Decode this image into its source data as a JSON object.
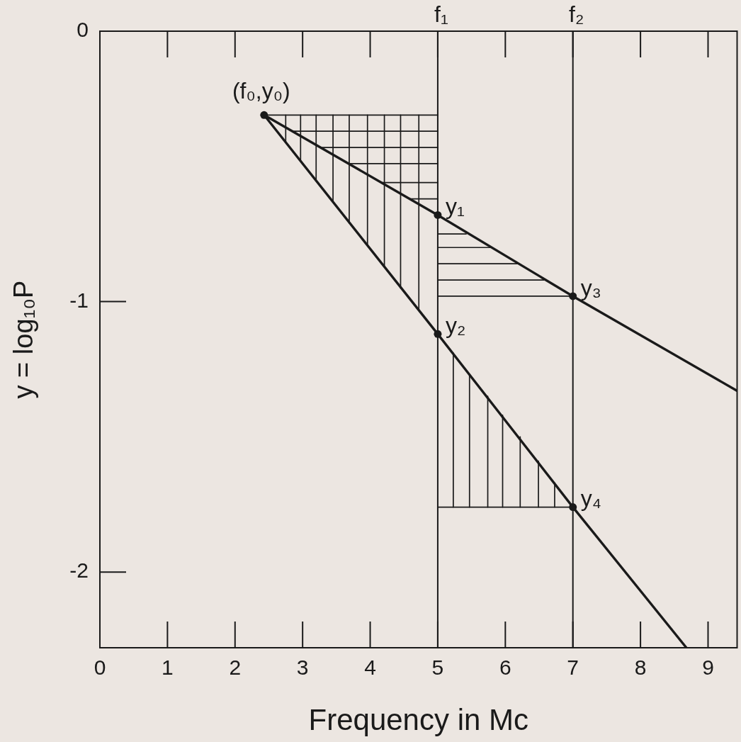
{
  "chart_data": {
    "type": "line",
    "xlabel": "Frequency in Mc",
    "ylabel": "y = log₁₀P",
    "xlim": [
      0,
      9.43
    ],
    "xticks": [
      0,
      1,
      2,
      3,
      4,
      5,
      6,
      7,
      8,
      9
    ],
    "ylim": [
      -2.28,
      0
    ],
    "yticks": [
      0,
      -1,
      -2
    ],
    "grid": false,
    "legend": false,
    "marker": "none",
    "line_style": "solid",
    "ref_lines": [
      {
        "axis": "x",
        "value": 5,
        "label": "f₁"
      },
      {
        "axis": "x",
        "value": 7,
        "label": "f₂"
      }
    ],
    "annotations": [
      {
        "text": "(f₀,y₀)",
        "x": 2.43,
        "y": -0.31
      },
      {
        "text": "y₁",
        "x": 5,
        "y": -0.68
      },
      {
        "text": "y₂",
        "x": 5,
        "y": -1.12
      },
      {
        "text": "y₃",
        "x": 7,
        "y": -0.98
      },
      {
        "text": "y₄",
        "x": 7,
        "y": -1.76
      }
    ],
    "series": [
      {
        "color": "#1a1a1a",
        "x": [
          2.43,
          5,
          7,
          9.43
        ],
        "values": [
          -0.31,
          -0.68,
          -0.98,
          -1.33
        ]
      },
      {
        "color": "#1a1a1a",
        "x": [
          2.43,
          5,
          7,
          8.68
        ],
        "values": [
          -0.31,
          -1.12,
          -1.76,
          -2.28
        ]
      },
      {
        "color": "#1a1a1a",
        "x": [
          2.43,
          5
        ],
        "values": [
          -0.31,
          -0.31
        ]
      },
      {
        "color": "#1a1a1a",
        "x": [
          2.85,
          5
        ],
        "values": [
          -0.37,
          -0.37
        ]
      },
      {
        "color": "#1a1a1a",
        "x": [
          3.26,
          5
        ],
        "values": [
          -0.43,
          -0.43
        ]
      },
      {
        "color": "#1a1a1a",
        "x": [
          3.68,
          5
        ],
        "values": [
          -0.49,
          -0.49
        ]
      },
      {
        "color": "#1a1a1a",
        "x": [
          4.17,
          5
        ],
        "values": [
          -0.56,
          -0.56
        ]
      },
      {
        "color": "#1a1a1a",
        "x": [
          4.58,
          5
        ],
        "values": [
          -0.62,
          -0.62
        ]
      },
      {
        "color": "#1a1a1a",
        "x": [
          2.75,
          2.75
        ],
        "values": [
          -0.31,
          -0.41
        ]
      },
      {
        "color": "#1a1a1a",
        "x": [
          2.97,
          2.97
        ],
        "values": [
          -0.31,
          -0.48
        ]
      },
      {
        "color": "#1a1a1a",
        "x": [
          3.2,
          3.2
        ],
        "values": [
          -0.31,
          -0.55
        ]
      },
      {
        "color": "#1a1a1a",
        "x": [
          3.45,
          3.45
        ],
        "values": [
          -0.31,
          -0.63
        ]
      },
      {
        "color": "#1a1a1a",
        "x": [
          3.69,
          3.69
        ],
        "values": [
          -0.31,
          -0.71
        ]
      },
      {
        "color": "#1a1a1a",
        "x": [
          3.96,
          3.96
        ],
        "values": [
          -0.31,
          -0.79
        ]
      },
      {
        "color": "#1a1a1a",
        "x": [
          4.21,
          4.21
        ],
        "values": [
          -0.31,
          -0.87
        ]
      },
      {
        "color": "#1a1a1a",
        "x": [
          4.45,
          4.45
        ],
        "values": [
          -0.31,
          -0.95
        ]
      },
      {
        "color": "#1a1a1a",
        "x": [
          4.72,
          4.72
        ],
        "values": [
          -0.31,
          -1.03
        ]
      },
      {
        "color": "#1a1a1a",
        "x": [
          5,
          5.42
        ],
        "values": [
          -0.75,
          -0.75
        ]
      },
      {
        "color": "#1a1a1a",
        "x": [
          5,
          5.79
        ],
        "values": [
          -0.8,
          -0.8
        ]
      },
      {
        "color": "#1a1a1a",
        "x": [
          5,
          6.19
        ],
        "values": [
          -0.86,
          -0.86
        ]
      },
      {
        "color": "#1a1a1a",
        "x": [
          5,
          6.57
        ],
        "values": [
          -0.92,
          -0.92
        ]
      },
      {
        "color": "#1a1a1a",
        "x": [
          5,
          7
        ],
        "values": [
          -0.98,
          -0.98
        ]
      },
      {
        "color": "#1a1a1a",
        "x": [
          5.23,
          5.23
        ],
        "values": [
          -1.19,
          -1.76
        ]
      },
      {
        "color": "#1a1a1a",
        "x": [
          5.47,
          5.47
        ],
        "values": [
          -1.27,
          -1.76
        ]
      },
      {
        "color": "#1a1a1a",
        "x": [
          5.74,
          5.74
        ],
        "values": [
          -1.35,
          -1.76
        ]
      },
      {
        "color": "#1a1a1a",
        "x": [
          5.96,
          5.96
        ],
        "values": [
          -1.42,
          -1.76
        ]
      },
      {
        "color": "#1a1a1a",
        "x": [
          6.22,
          6.22
        ],
        "values": [
          -1.5,
          -1.76
        ]
      },
      {
        "color": "#1a1a1a",
        "x": [
          6.49,
          6.49
        ],
        "values": [
          -1.59,
          -1.76
        ]
      },
      {
        "color": "#1a1a1a",
        "x": [
          6.73,
          6.73
        ],
        "values": [
          -1.67,
          -1.76
        ]
      },
      {
        "color": "#1a1a1a",
        "x": [
          5,
          7
        ],
        "values": [
          -1.76,
          -1.76
        ]
      },
      {
        "type": "scatter",
        "marker": "circle",
        "color": "#1a1a1a",
        "x": [
          2.43,
          5,
          5,
          7,
          7
        ],
        "values": [
          -0.31,
          -0.68,
          -1.12,
          -0.98,
          -1.76
        ]
      }
    ]
  }
}
